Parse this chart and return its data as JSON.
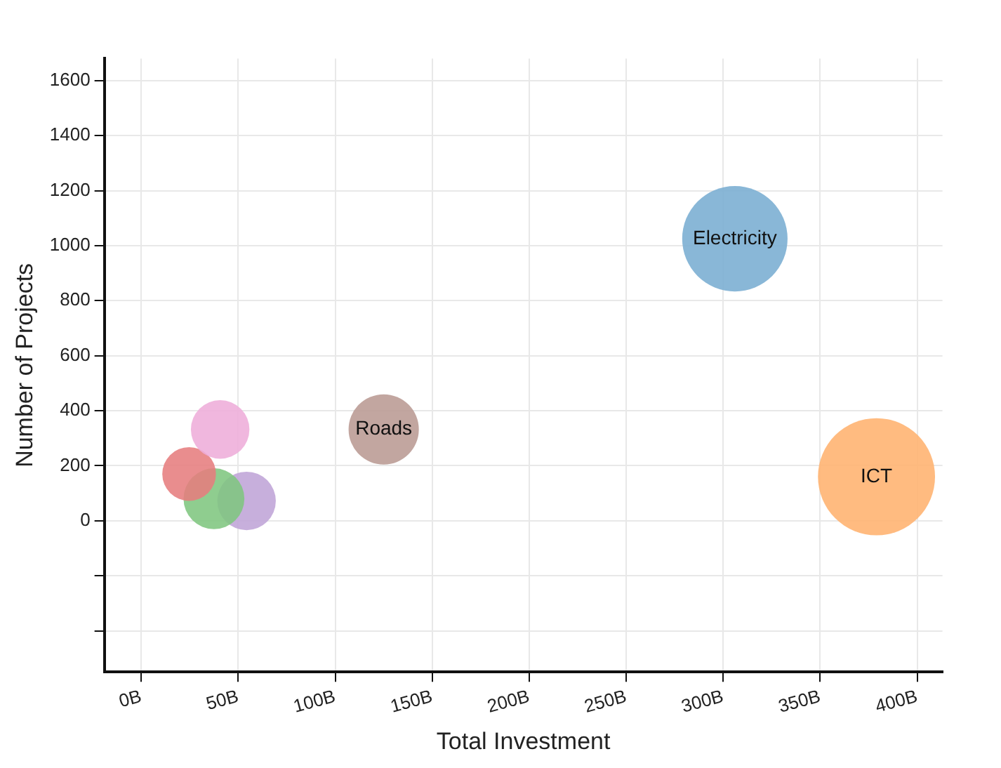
{
  "chart_data": {
    "type": "bubble",
    "xlabel": "Total Investment",
    "ylabel": "Number of Projects",
    "xlim": [
      -19,
      413
    ],
    "ylim": [
      -550,
      1680
    ],
    "xticks": [
      {
        "value": 0,
        "label": "0B"
      },
      {
        "value": 50,
        "label": "50B"
      },
      {
        "value": 100,
        "label": "100B"
      },
      {
        "value": 150,
        "label": "150B"
      },
      {
        "value": 200,
        "label": "200B"
      },
      {
        "value": 250,
        "label": "250B"
      },
      {
        "value": 300,
        "label": "300B"
      },
      {
        "value": 350,
        "label": "350B"
      },
      {
        "value": 400,
        "label": "400B"
      }
    ],
    "yticks": [
      {
        "value": -400,
        "label": null
      },
      {
        "value": -200,
        "label": null
      },
      0,
      200,
      400,
      600,
      800,
      1000,
      1200,
      1400,
      1600
    ],
    "grid": true,
    "legend": false,
    "series": [
      {
        "name": "Electricity",
        "color": "#79add2",
        "x": [
          306
        ],
        "values": [
          1025
        ],
        "sizes": [
          0.81
        ]
      },
      {
        "name": "ICT",
        "color": "#ffb26e",
        "x": [
          379
        ],
        "values": [
          160
        ],
        "sizes": [
          1
        ]
      },
      {
        "name": "Roads",
        "color": "#ba9a93",
        "x": [
          125
        ],
        "values": [
          332
        ],
        "sizes": [
          0.36
        ]
      },
      {
        "color": "#eeadda",
        "x": [
          40.7
        ],
        "values": [
          332
        ],
        "sizes": [
          0.25
        ]
      },
      {
        "color": "#e67d7e",
        "x": [
          24.7
        ],
        "values": [
          170
        ],
        "sizes": [
          0.21
        ]
      },
      {
        "color": "#80c680",
        "x": [
          37.5
        ],
        "values": [
          80
        ],
        "sizes": [
          0.27
        ]
      },
      {
        "color": "#bfa4d7",
        "x": [
          54.3
        ],
        "values": [
          72
        ],
        "sizes": [
          0.25
        ]
      }
    ]
  }
}
